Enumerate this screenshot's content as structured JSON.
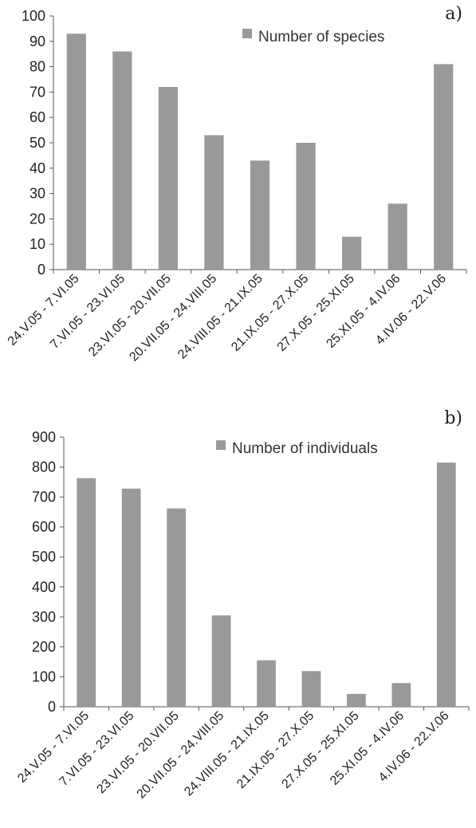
{
  "chart_data": [
    {
      "type": "bar",
      "panel_label": "a)",
      "categories": [
        "24.V.05 - 7.VI.05",
        "7.VI.05 - 23.VI.05",
        "23.VI.05 - 20.VII.05",
        "20.VII.05 - 24.VIII.05",
        "24.VIII.05 - 21.IX.05",
        "21.IX.05 - 27.X.05",
        "27.X.05 - 25.XI.05",
        "25.XI.05 - 4.IV.06",
        "4.IV.06 - 22.V.06"
      ],
      "series": [
        {
          "name": "Number of species",
          "values": [
            93,
            86,
            72,
            53,
            43,
            50,
            13,
            26,
            81
          ]
        }
      ],
      "yticks": [
        0,
        10,
        20,
        30,
        40,
        50,
        60,
        70,
        80,
        90,
        100
      ],
      "ylim": [
        0,
        100
      ],
      "legend_position": "top-right",
      "grid": false,
      "bar_color": "#999999"
    },
    {
      "type": "bar",
      "panel_label": "b)",
      "categories": [
        "24.V.05 - 7.VI.05",
        "7.VI.05 - 23.VI.05",
        "23.VI.05 - 20.VII.05",
        "20.VII.05 - 24.VIII.05",
        "24.VIII.05 - 21.IX.05",
        "21.IX.05 - 27.X.05",
        "27.X.05 - 25.XI.05",
        "25.XI.05 - 4.IV.06",
        "4.IV.06 - 22.V.06"
      ],
      "series": [
        {
          "name": "Number of individuals",
          "values": [
            763,
            728,
            662,
            305,
            155,
            119,
            43,
            79,
            815
          ]
        }
      ],
      "yticks": [
        0,
        100,
        200,
        300,
        400,
        500,
        600,
        700,
        800,
        900
      ],
      "ylim": [
        0,
        900
      ],
      "legend_position": "top-right",
      "grid": false,
      "bar_color": "#999999"
    }
  ]
}
